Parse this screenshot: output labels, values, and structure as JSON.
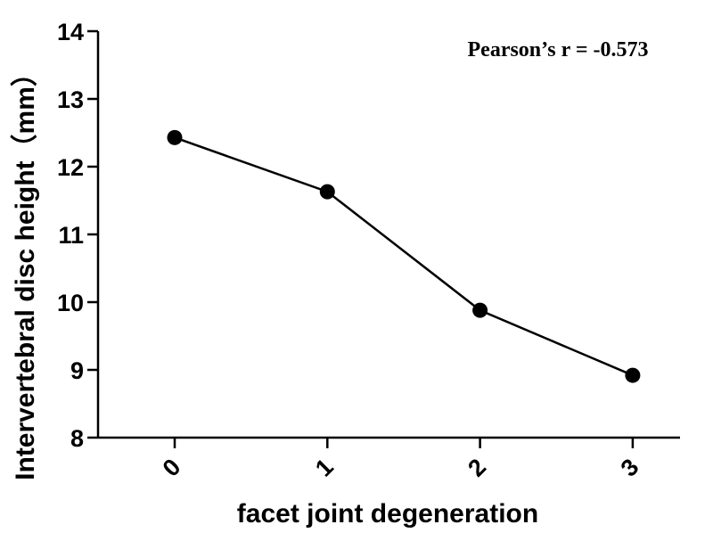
{
  "chart_data": {
    "type": "line",
    "categories": [
      "0",
      "1",
      "2",
      "3"
    ],
    "values": [
      12.43,
      11.63,
      9.88,
      8.92
    ],
    "xlabel": "facet joint degeneration",
    "ylabel": "Intervertebral disc height（mm）",
    "ylim": [
      8,
      14
    ],
    "yticks": [
      "8",
      "9",
      "10",
      "11",
      "12",
      "13",
      "14"
    ],
    "annotation": "Pearson’s r = -0.573",
    "grid": false,
    "line_color": "#000000",
    "marker_color": "#000000"
  }
}
